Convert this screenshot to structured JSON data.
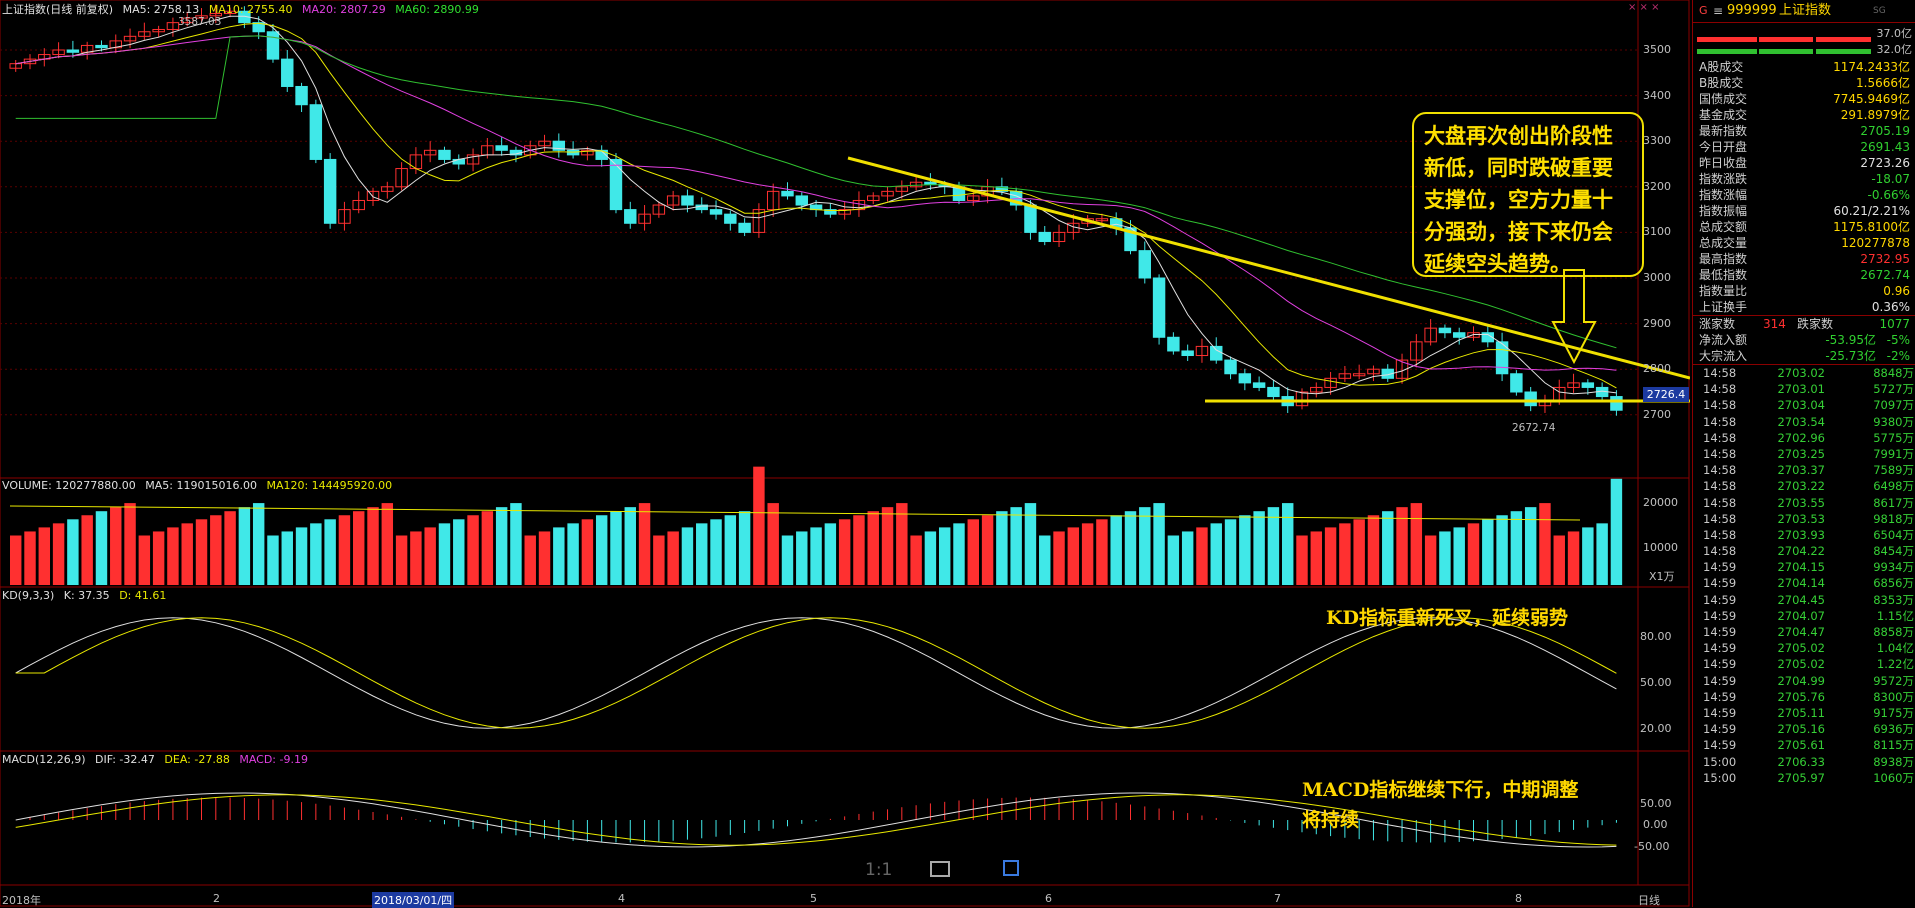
{
  "header": {
    "title": "上证指数(日线 前复权)",
    "ma5": "MA5: 2758.13",
    "ma10": "MA10: 2755.40",
    "ma20": "MA20: 2807.29",
    "ma60": "MA60: 2890.99",
    "high_marker": "3587.03",
    "low_marker": "2672.74",
    "current_price_tag": "2726.4",
    "menu_dots": "× × ×"
  },
  "price_axis": [
    "3500",
    "3400",
    "3300",
    "3200",
    "3100",
    "3000",
    "2900",
    "2800",
    "2700"
  ],
  "volume": {
    "label": "VOLUME: 120277880.00",
    "ma5": "MA5: 119015016.00",
    "ma120": "MA120: 144495920.00",
    "axis": [
      "20000",
      "10000"
    ],
    "unit": "X1万"
  },
  "kd": {
    "label": "KD(9,3,3)",
    "k": "K: 37.35",
    "d": "D: 41.61",
    "axis": [
      "80.00",
      "50.00",
      "20.00"
    ],
    "note": "KD指标重新死叉，延续弱势"
  },
  "macd": {
    "label": "MACD(12,26,9)",
    "dif": "DIF: -32.47",
    "dea": "DEA: -27.88",
    "macd": "MACD: -9.19",
    "axis": [
      "50.00",
      "0.00",
      "-50.00"
    ],
    "note_line1": "MACD指标继续下行，中期调整",
    "note_line2": "将持续"
  },
  "annotation": "大盘再次创出阶段性新低，同时跌破重要支撑位，空方力量十分强劲，接下来仍会延续空头趋势。",
  "date_axis": {
    "labels": [
      "2018年",
      "2",
      "2018/03/01/四",
      "4",
      "5",
      "6",
      "7",
      "8"
    ],
    "right_label": "日线"
  },
  "bottom_icons": {
    "ratio": "1:1"
  },
  "sidebar": {
    "code_prefix": "G",
    "code": "999999",
    "name": "上证指数",
    "tag": "SG",
    "amount_top": "37.0亿",
    "amount_bottom": "32.0亿",
    "stats": [
      {
        "label": "A股成交",
        "value": "1174.2433亿",
        "color": "yel"
      },
      {
        "label": "B股成交",
        "value": "1.5666亿",
        "color": "yel"
      },
      {
        "label": "国债成交",
        "value": "7745.9469亿",
        "color": "yel"
      },
      {
        "label": "基金成交",
        "value": "291.8979亿",
        "color": "yel"
      },
      {
        "label": "最新指数",
        "value": "2705.19",
        "color": "grn"
      },
      {
        "label": "今日开盘",
        "value": "2691.43",
        "color": "grn"
      },
      {
        "label": "昨日收盘",
        "value": "2723.26",
        "color": "white"
      },
      {
        "label": "指数涨跌",
        "value": "-18.07",
        "color": "grn"
      },
      {
        "label": "指数涨幅",
        "value": "-0.66%",
        "color": "grn"
      },
      {
        "label": "指数振幅",
        "value": "60.21/2.21%",
        "color": "white"
      },
      {
        "label": "总成交额",
        "value": "1175.8100亿",
        "color": "yel"
      },
      {
        "label": "总成交量",
        "value": "120277878",
        "color": "yel"
      },
      {
        "label": "最高指数",
        "value": "2732.95",
        "color": "red"
      },
      {
        "label": "最低指数",
        "value": "2672.74",
        "color": "grn"
      },
      {
        "label": "指数量比",
        "value": "0.96",
        "color": "yel"
      },
      {
        "label": "上证换手",
        "value": "0.36%",
        "color": "white"
      }
    ],
    "updown": {
      "up_label": "涨家数",
      "up": "314",
      "down_label": "跌家数",
      "down": "1077"
    },
    "flows": [
      {
        "label": "净流入额",
        "value": "-53.95亿",
        "pct": "-5%"
      },
      {
        "label": "大宗流入",
        "value": "-25.73亿",
        "pct": "-2%"
      }
    ],
    "ticks": [
      {
        "t": "14:58",
        "p": "2703.02",
        "v": "8848万"
      },
      {
        "t": "14:58",
        "p": "2703.01",
        "v": "5727万"
      },
      {
        "t": "14:58",
        "p": "2703.04",
        "v": "7097万"
      },
      {
        "t": "14:58",
        "p": "2703.54",
        "v": "9380万"
      },
      {
        "t": "14:58",
        "p": "2702.96",
        "v": "5775万"
      },
      {
        "t": "14:58",
        "p": "2703.25",
        "v": "7991万"
      },
      {
        "t": "14:58",
        "p": "2703.37",
        "v": "7589万"
      },
      {
        "t": "14:58",
        "p": "2703.22",
        "v": "6498万"
      },
      {
        "t": "14:58",
        "p": "2703.55",
        "v": "8617万"
      },
      {
        "t": "14:58",
        "p": "2703.53",
        "v": "9818万"
      },
      {
        "t": "14:58",
        "p": "2703.93",
        "v": "6504万"
      },
      {
        "t": "14:58",
        "p": "2704.22",
        "v": "8454万"
      },
      {
        "t": "14:59",
        "p": "2704.15",
        "v": "9934万"
      },
      {
        "t": "14:59",
        "p": "2704.14",
        "v": "6856万"
      },
      {
        "t": "14:59",
        "p": "2704.45",
        "v": "8353万"
      },
      {
        "t": "14:59",
        "p": "2704.07",
        "v": "1.15亿"
      },
      {
        "t": "14:59",
        "p": "2704.47",
        "v": "8858万"
      },
      {
        "t": "14:59",
        "p": "2705.02",
        "v": "1.04亿"
      },
      {
        "t": "14:59",
        "p": "2705.02",
        "v": "1.22亿"
      },
      {
        "t": "14:59",
        "p": "2704.99",
        "v": "9572万"
      },
      {
        "t": "14:59",
        "p": "2705.76",
        "v": "8300万"
      },
      {
        "t": "14:59",
        "p": "2705.11",
        "v": "9175万"
      },
      {
        "t": "14:59",
        "p": "2705.16",
        "v": "6936万"
      },
      {
        "t": "14:59",
        "p": "2705.61",
        "v": "8115万"
      },
      {
        "t": "15:00",
        "p": "2706.33",
        "v": "8938万"
      },
      {
        "t": "15:00",
        "p": "2705.97",
        "v": "1060万"
      }
    ]
  }
}
